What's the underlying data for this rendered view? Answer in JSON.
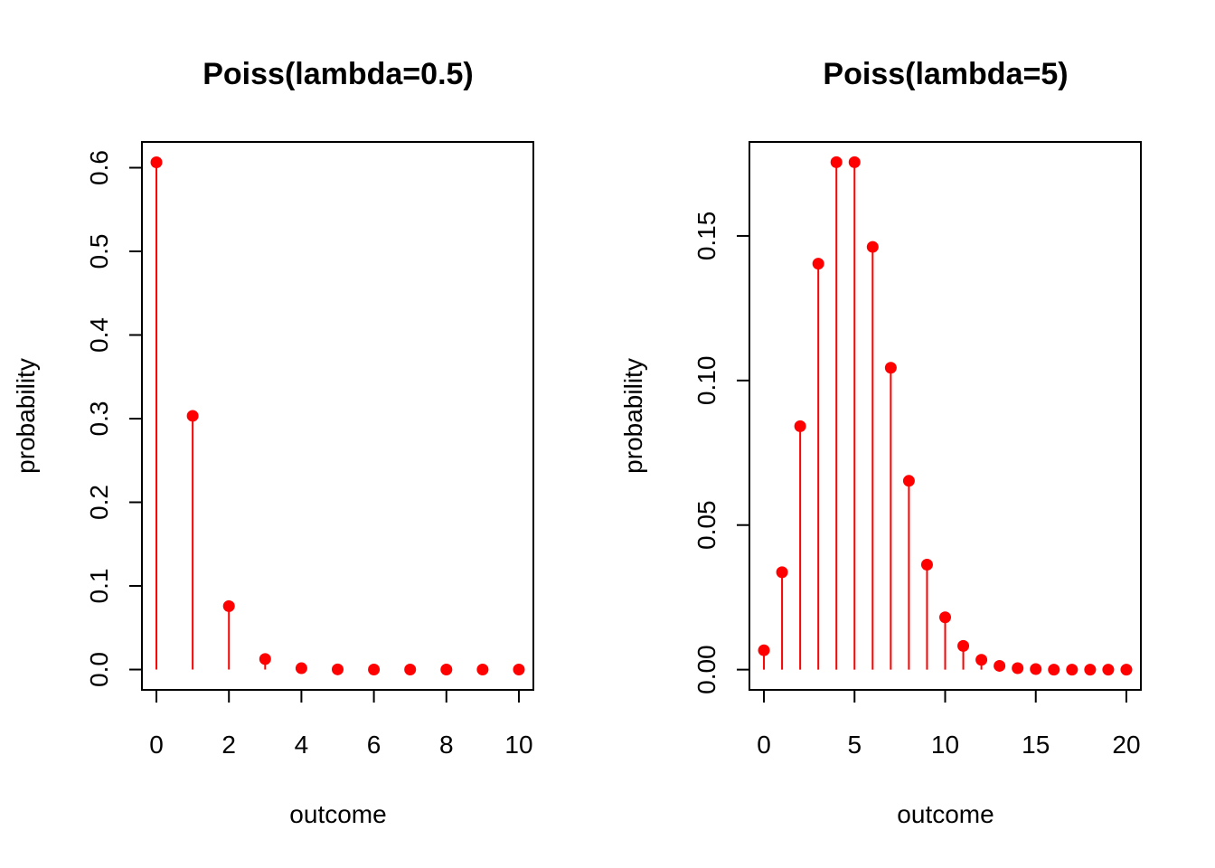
{
  "colors": {
    "points": "#ff0000",
    "axes": "#000000",
    "background": "#ffffff"
  },
  "chart_data": [
    {
      "type": "scatter",
      "style": "stem plot (vertical lines with filled point markers)",
      "title": "Poiss(lambda=0.5)",
      "xlabel": "outcome",
      "ylabel": "probability",
      "x": [
        0,
        1,
        2,
        3,
        4,
        5,
        6,
        7,
        8,
        9,
        10
      ],
      "values": [
        0.6065,
        0.3033,
        0.0758,
        0.0126,
        0.0016,
        0.0002,
        0.0,
        0.0,
        0.0,
        0.0,
        0.0
      ],
      "xlim": [
        -0.4,
        10.4
      ],
      "ylim": [
        -0.0243,
        0.6308
      ],
      "xticks": [
        0,
        2,
        4,
        6,
        8,
        10
      ],
      "xtick_labels": [
        "0",
        "2",
        "4",
        "6",
        "8",
        "10"
      ],
      "yticks": [
        0.0,
        0.1,
        0.2,
        0.3,
        0.4,
        0.5,
        0.6
      ],
      "ytick_labels": [
        "0.0",
        "0.1",
        "0.2",
        "0.3",
        "0.4",
        "0.5",
        "0.6"
      ],
      "grid": false,
      "legend": "none"
    },
    {
      "type": "scatter",
      "style": "stem plot (vertical lines with filled point markers)",
      "title": "Poiss(lambda=5)",
      "xlabel": "outcome",
      "ylabel": "probability",
      "x": [
        0,
        1,
        2,
        3,
        4,
        5,
        6,
        7,
        8,
        9,
        10,
        11,
        12,
        13,
        14,
        15,
        16,
        17,
        18,
        19,
        20
      ],
      "values": [
        0.0067,
        0.0337,
        0.0842,
        0.1404,
        0.1755,
        0.1755,
        0.1462,
        0.1044,
        0.0653,
        0.0363,
        0.0181,
        0.0082,
        0.0034,
        0.0013,
        0.0005,
        0.0002,
        0.0,
        0.0,
        0.0,
        0.0,
        0.0
      ],
      "xlim": [
        -0.8,
        20.8
      ],
      "ylim": [
        -0.007,
        0.1825
      ],
      "xticks": [
        0,
        5,
        10,
        15,
        20
      ],
      "xtick_labels": [
        "0",
        "5",
        "10",
        "15",
        "20"
      ],
      "yticks": [
        0.0,
        0.05,
        0.1,
        0.15
      ],
      "ytick_labels": [
        "0.00",
        "0.05",
        "0.10",
        "0.15"
      ],
      "grid": false,
      "legend": "none"
    }
  ]
}
